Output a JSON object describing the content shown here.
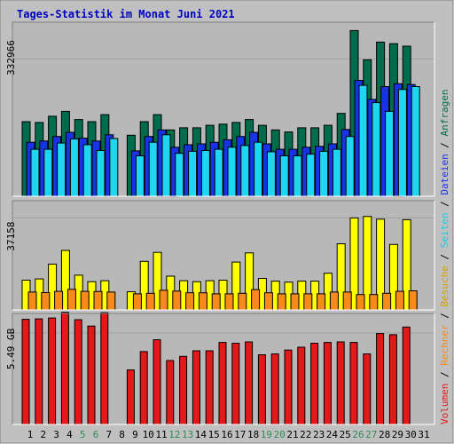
{
  "title": "Tages-Statistik im Monat Juni 2021",
  "colors": {
    "frame_bg": "#c0c0c0",
    "panel_bg": "#b8b8b8",
    "border_dark": "#7f7f7f",
    "title": "#0000c0",
    "anfragen": "#006c4c",
    "dateien": "#1634e6",
    "seiten": "#1ed6f2",
    "besuche": "#ffff00",
    "rechner": "#f88a1c",
    "volumen": "#e41818",
    "day_weekday": "#000000",
    "day_weekend": "#2e8b57"
  },
  "chart_data": [
    {
      "type": "bar",
      "panel": "top",
      "y_tick_label": "332966",
      "y_tick_value": 332966,
      "ylim": [
        0,
        420000
      ],
      "x": [
        1,
        2,
        3,
        4,
        5,
        6,
        7,
        8,
        9,
        10,
        11,
        12,
        13,
        14,
        15,
        16,
        17,
        18,
        19,
        20,
        21,
        22,
        23,
        24,
        25,
        26,
        27,
        28,
        29,
        30,
        31
      ],
      "series": [
        {
          "name": "Anfragen",
          "color_key": "anfragen",
          "values": [
            181000,
            179000,
            194000,
            206000,
            186000,
            181000,
            198000,
            null,
            148000,
            181000,
            198000,
            161000,
            166000,
            166000,
            172000,
            175000,
            179000,
            186000,
            172000,
            161000,
            156000,
            166000,
            166000,
            172000,
            201000,
            402000,
            331000,
            374000,
            370000,
            364000,
            null
          ]
        },
        {
          "name": "Dateien",
          "color_key": "dateien",
          "values": [
            131000,
            134000,
            145000,
            155000,
            141000,
            134000,
            149000,
            null,
            110000,
            145000,
            161000,
            119000,
            125000,
            127000,
            131000,
            137000,
            145000,
            155000,
            127000,
            114000,
            114000,
            119000,
            121000,
            127000,
            162000,
            281000,
            235000,
            266000,
            273000,
            271000,
            null
          ]
        },
        {
          "name": "Seiten",
          "color_key": "seiten",
          "values": [
            114000,
            114000,
            129000,
            139000,
            125000,
            111000,
            140000,
            null,
            98000,
            131000,
            149000,
            104000,
            109000,
            111000,
            114000,
            119000,
            123000,
            131000,
            108000,
            98000,
            98000,
            102000,
            109000,
            114000,
            145000,
            269000,
            227000,
            206000,
            259000,
            266000,
            null
          ]
        }
      ]
    },
    {
      "type": "bar",
      "panel": "middle",
      "y_tick_label": "37158",
      "y_tick_value": 37158,
      "ylim": [
        0,
        43700
      ],
      "x": [
        1,
        2,
        3,
        4,
        5,
        6,
        7,
        8,
        9,
        10,
        11,
        12,
        13,
        14,
        15,
        16,
        17,
        18,
        19,
        20,
        21,
        22,
        23,
        24,
        25,
        26,
        27,
        28,
        29,
        30,
        31
      ],
      "series": [
        {
          "name": "Besuche",
          "color_key": "besuche",
          "values": [
            12000,
            12500,
            18500,
            24000,
            14000,
            11400,
            11800,
            null,
            7300,
            19600,
            23200,
            13600,
            11800,
            11400,
            11800,
            12000,
            19300,
            23000,
            12700,
            11600,
            11200,
            11600,
            11600,
            14800,
            26700,
            37100,
            37700,
            36600,
            26400,
            36400,
            null
          ]
        },
        {
          "name": "Rechner",
          "color_key": "rechner",
          "values": [
            7200,
            7000,
            7500,
            8300,
            7500,
            7400,
            7200,
            null,
            6500,
            6700,
            7900,
            7600,
            6900,
            6900,
            6500,
            6500,
            6700,
            8200,
            6900,
            6500,
            6500,
            6500,
            6500,
            7200,
            7200,
            6200,
            6200,
            6700,
            7500,
            7700,
            null
          ]
        }
      ]
    },
    {
      "type": "bar",
      "panel": "bottom",
      "y_tick_label": "5.49 GB",
      "y_tick_value": 5.49,
      "ylim": [
        0,
        6.6
      ],
      "x": [
        1,
        2,
        3,
        4,
        5,
        6,
        7,
        8,
        9,
        10,
        11,
        12,
        13,
        14,
        15,
        16,
        17,
        18,
        19,
        20,
        21,
        22,
        23,
        24,
        25,
        26,
        27,
        28,
        29,
        30,
        31
      ],
      "series": [
        {
          "name": "Volumen",
          "color_key": "volumen",
          "values": [
            6.3,
            6.33,
            6.38,
            6.72,
            6.28,
            5.9,
            6.7,
            null,
            3.27,
            4.37,
            5.08,
            3.83,
            4.08,
            4.42,
            4.42,
            4.92,
            4.87,
            4.95,
            4.18,
            4.23,
            4.46,
            4.63,
            4.87,
            4.92,
            4.95,
            4.92,
            4.23,
            5.45,
            5.38,
            5.84,
            null
          ]
        }
      ]
    }
  ],
  "x_labels": [
    "1",
    "2",
    "3",
    "4",
    "5",
    "6",
    "7",
    "8",
    "9",
    "10",
    "11",
    "12",
    "13",
    "14",
    "15",
    "16",
    "17",
    "18",
    "19",
    "20",
    "21",
    "22",
    "23",
    "24",
    "25",
    "26",
    "27",
    "28",
    "29",
    "30",
    "31"
  ],
  "weekend_days": [
    5,
    6,
    12,
    13,
    19,
    20,
    26,
    27
  ],
  "legend": {
    "volumen": "Volumen",
    "rechner": "Rechner",
    "besuche": "Besuche",
    "seiten": "Seiten",
    "dateien": "Dateien",
    "anfragen": "Anfragen",
    "separator": " / "
  }
}
